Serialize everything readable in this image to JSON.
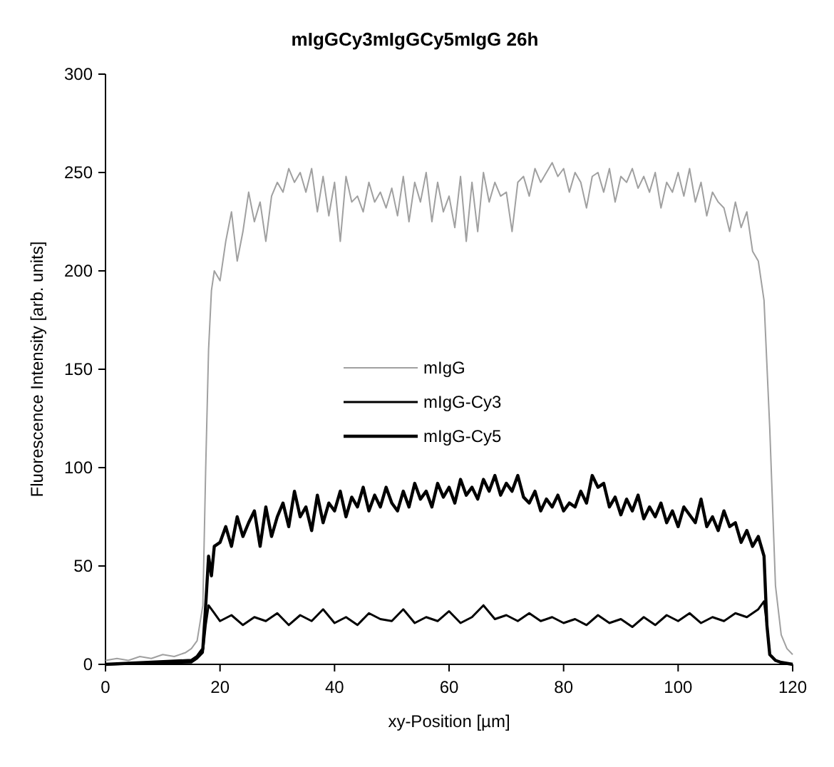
{
  "chart_data": {
    "type": "line",
    "title": "mIgGCy3mIgGCy5mIgG 26h",
    "xlabel": "xy-Position [µm]",
    "ylabel": "Fluorescence Intensity [arb. units]",
    "xlim": [
      0,
      120
    ],
    "ylim": [
      0,
      300
    ],
    "xticks": [
      0,
      20,
      40,
      60,
      80,
      100,
      120
    ],
    "yticks": [
      0,
      50,
      100,
      150,
      200,
      250,
      300
    ],
    "grid": false,
    "legend": "center",
    "line_style": "solid",
    "series": [
      {
        "name": "mIgG",
        "color": "#a0a0a0",
        "x": [
          0,
          2,
          4,
          6,
          8,
          10,
          12,
          14,
          15,
          16,
          17,
          17.5,
          18,
          18.5,
          19,
          20,
          21,
          22,
          23,
          24,
          25,
          26,
          27,
          28,
          29,
          30,
          31,
          32,
          33,
          34,
          35,
          36,
          37,
          38,
          39,
          40,
          41,
          42,
          43,
          44,
          45,
          46,
          47,
          48,
          49,
          50,
          51,
          52,
          53,
          54,
          55,
          56,
          57,
          58,
          59,
          60,
          61,
          62,
          63,
          64,
          65,
          66,
          67,
          68,
          69,
          70,
          71,
          72,
          73,
          74,
          75,
          76,
          77,
          78,
          79,
          80,
          81,
          82,
          83,
          84,
          85,
          86,
          87,
          88,
          89,
          90,
          91,
          92,
          93,
          94,
          95,
          96,
          97,
          98,
          99,
          100,
          101,
          102,
          103,
          104,
          105,
          106,
          107,
          108,
          109,
          110,
          111,
          112,
          113,
          114,
          115,
          116,
          117,
          118,
          119,
          120
        ],
        "values": [
          2,
          3,
          2,
          4,
          3,
          5,
          4,
          6,
          8,
          12,
          30,
          100,
          160,
          190,
          200,
          195,
          215,
          230,
          205,
          220,
          240,
          225,
          235,
          215,
          238,
          245,
          240,
          252,
          245,
          250,
          240,
          252,
          230,
          248,
          228,
          245,
          215,
          248,
          235,
          238,
          230,
          245,
          235,
          240,
          232,
          242,
          228,
          248,
          225,
          245,
          235,
          250,
          225,
          245,
          230,
          238,
          222,
          248,
          215,
          245,
          220,
          250,
          235,
          245,
          238,
          240,
          220,
          245,
          248,
          238,
          252,
          245,
          250,
          255,
          248,
          252,
          240,
          250,
          245,
          232,
          248,
          250,
          240,
          252,
          235,
          248,
          245,
          252,
          242,
          248,
          240,
          250,
          232,
          245,
          240,
          250,
          238,
          252,
          235,
          245,
          228,
          240,
          235,
          232,
          220,
          235,
          222,
          230,
          210,
          205,
          185,
          120,
          40,
          15,
          8,
          5
        ]
      },
      {
        "name": "mIgG-Cy3",
        "color": "#000000",
        "x": [
          0,
          15,
          16,
          17,
          17.5,
          18,
          19,
          20,
          22,
          24,
          26,
          28,
          30,
          32,
          34,
          36,
          38,
          40,
          42,
          44,
          46,
          48,
          50,
          52,
          54,
          56,
          58,
          60,
          62,
          64,
          66,
          68,
          70,
          72,
          74,
          76,
          78,
          80,
          82,
          84,
          86,
          88,
          90,
          92,
          94,
          96,
          98,
          100,
          102,
          104,
          106,
          108,
          110,
          112,
          114,
          115,
          115.5,
          116,
          117,
          118,
          120
        ],
        "values": [
          0,
          1,
          3,
          6,
          20,
          30,
          26,
          22,
          25,
          20,
          24,
          22,
          26,
          20,
          25,
          22,
          28,
          21,
          24,
          20,
          26,
          23,
          22,
          28,
          21,
          24,
          22,
          27,
          21,
          24,
          30,
          23,
          25,
          22,
          26,
          22,
          24,
          21,
          23,
          20,
          25,
          21,
          23,
          19,
          24,
          20,
          25,
          22,
          26,
          21,
          24,
          22,
          26,
          24,
          28,
          32,
          20,
          5,
          2,
          1,
          0
        ]
      },
      {
        "name": "mIgG-Cy5",
        "color": "#000000",
        "x": [
          0,
          15,
          16,
          17,
          17.5,
          18,
          18.5,
          19,
          20,
          21,
          22,
          23,
          24,
          25,
          26,
          27,
          28,
          29,
          30,
          31,
          32,
          33,
          34,
          35,
          36,
          37,
          38,
          39,
          40,
          41,
          42,
          43,
          44,
          45,
          46,
          47,
          48,
          49,
          50,
          51,
          52,
          53,
          54,
          55,
          56,
          57,
          58,
          59,
          60,
          61,
          62,
          63,
          64,
          65,
          66,
          67,
          68,
          69,
          70,
          71,
          72,
          73,
          74,
          75,
          76,
          77,
          78,
          79,
          80,
          81,
          82,
          83,
          84,
          85,
          86,
          87,
          88,
          89,
          90,
          91,
          92,
          93,
          94,
          95,
          96,
          97,
          98,
          99,
          100,
          101,
          102,
          103,
          104,
          105,
          106,
          107,
          108,
          109,
          110,
          111,
          112,
          113,
          114,
          115,
          115.5,
          116,
          117,
          118,
          120
        ],
        "values": [
          0,
          2,
          4,
          8,
          30,
          55,
          45,
          60,
          62,
          70,
          60,
          75,
          65,
          72,
          78,
          60,
          80,
          65,
          75,
          82,
          70,
          88,
          75,
          80,
          68,
          86,
          72,
          82,
          78,
          88,
          75,
          85,
          80,
          90,
          78,
          86,
          80,
          90,
          82,
          78,
          88,
          80,
          92,
          84,
          88,
          80,
          92,
          85,
          90,
          82,
          94,
          86,
          90,
          84,
          94,
          88,
          96,
          86,
          92,
          88,
          96,
          85,
          82,
          88,
          78,
          84,
          80,
          86,
          78,
          82,
          80,
          88,
          82,
          96,
          90,
          92,
          80,
          85,
          76,
          84,
          78,
          86,
          74,
          80,
          75,
          82,
          72,
          78,
          70,
          80,
          76,
          72,
          84,
          70,
          75,
          68,
          78,
          70,
          72,
          62,
          68,
          60,
          65,
          55,
          20,
          5,
          2,
          1,
          0
        ]
      }
    ]
  }
}
